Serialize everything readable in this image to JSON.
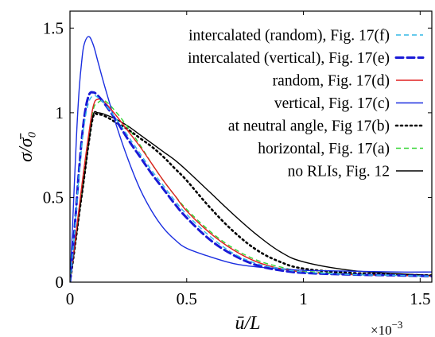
{
  "chart_data": {
    "type": "line",
    "xlabel": "ū/L",
    "ylabel": "σ/σ̄₀",
    "x_multiplier": "×10",
    "x_multiplier_exp": "−3",
    "xlim": [
      0,
      1.55
    ],
    "ylim": [
      0,
      1.6
    ],
    "x_ticks": [
      {
        "value": 0,
        "label": "0"
      },
      {
        "value": 0.5,
        "label": "0.5"
      },
      {
        "value": 1,
        "label": "1"
      },
      {
        "value": 1.5,
        "label": "1.5"
      }
    ],
    "y_ticks": [
      {
        "value": 0,
        "label": "0"
      },
      {
        "value": 0.5,
        "label": "0.5"
      },
      {
        "value": 1,
        "label": "1"
      },
      {
        "value": 1.5,
        "label": "1.5"
      }
    ],
    "legend_position": "top-right",
    "series": [
      {
        "name": "intercalated (random), Fig. 17(f)",
        "color": "#33b8e6",
        "dash": "6,4",
        "width": 1.4,
        "x": [
          0,
          0.02,
          0.04,
          0.06,
          0.08,
          0.1,
          0.12,
          0.15,
          0.2,
          0.25,
          0.3,
          0.35,
          0.4,
          0.45,
          0.5,
          0.6,
          0.7,
          0.8,
          0.9,
          1.0,
          1.2,
          1.4,
          1.55
        ],
        "y": [
          0,
          0.3,
          0.65,
          0.92,
          1.06,
          1.1,
          1.09,
          1.05,
          0.96,
          0.86,
          0.76,
          0.66,
          0.57,
          0.48,
          0.4,
          0.27,
          0.17,
          0.11,
          0.08,
          0.06,
          0.045,
          0.04,
          0.035
        ]
      },
      {
        "name": "intercalated (vertical), Fig. 17(e)",
        "color": "#1a1ad6",
        "dash": "9,5",
        "width": 3,
        "x": [
          0,
          0.02,
          0.04,
          0.06,
          0.08,
          0.1,
          0.12,
          0.15,
          0.2,
          0.25,
          0.3,
          0.35,
          0.4,
          0.45,
          0.5,
          0.6,
          0.7,
          0.8,
          0.9,
          1.0,
          1.2,
          1.4,
          1.55
        ],
        "y": [
          0,
          0.32,
          0.68,
          0.96,
          1.1,
          1.12,
          1.1,
          1.05,
          0.95,
          0.84,
          0.74,
          0.64,
          0.55,
          0.46,
          0.38,
          0.25,
          0.16,
          0.1,
          0.07,
          0.055,
          0.045,
          0.04,
          0.035
        ]
      },
      {
        "name": "random, Fig. 17(d)",
        "color": "#e02020",
        "dash": "",
        "width": 1.4,
        "x": [
          0,
          0.02,
          0.04,
          0.06,
          0.08,
          0.1,
          0.12,
          0.15,
          0.2,
          0.25,
          0.3,
          0.35,
          0.4,
          0.45,
          0.5,
          0.6,
          0.7,
          0.8,
          0.9,
          1.0,
          1.2,
          1.4,
          1.55
        ],
        "y": [
          0,
          0.22,
          0.45,
          0.67,
          0.87,
          1.04,
          1.08,
          1.06,
          0.98,
          0.89,
          0.8,
          0.7,
          0.6,
          0.51,
          0.42,
          0.29,
          0.19,
          0.12,
          0.08,
          0.06,
          0.045,
          0.04,
          0.035
        ]
      },
      {
        "name": "vertical, Fig. 17(c)",
        "color": "#1a2ee0",
        "dash": "",
        "width": 1.4,
        "x": [
          0,
          0.01,
          0.02,
          0.03,
          0.04,
          0.05,
          0.06,
          0.08,
          0.1,
          0.12,
          0.15,
          0.2,
          0.25,
          0.3,
          0.35,
          0.4,
          0.45,
          0.5,
          0.6,
          0.7,
          0.8,
          0.9,
          1.0,
          1.2,
          1.4,
          1.55
        ],
        "y": [
          0,
          0.3,
          0.62,
          0.92,
          1.15,
          1.3,
          1.4,
          1.45,
          1.4,
          1.3,
          1.15,
          0.92,
          0.72,
          0.55,
          0.42,
          0.32,
          0.25,
          0.2,
          0.15,
          0.11,
          0.09,
          0.08,
          0.07,
          0.065,
          0.06,
          0.06
        ]
      },
      {
        "name": "at neutral angle, Fig 17(b)",
        "color": "#000000",
        "dash": "2,4",
        "width": 2.6,
        "x": [
          0,
          0.02,
          0.04,
          0.06,
          0.08,
          0.1,
          0.12,
          0.15,
          0.2,
          0.25,
          0.3,
          0.35,
          0.4,
          0.45,
          0.5,
          0.6,
          0.7,
          0.8,
          0.9,
          1.0,
          1.2,
          1.4,
          1.55
        ],
        "y": [
          0,
          0.2,
          0.41,
          0.61,
          0.82,
          0.98,
          0.99,
          0.98,
          0.94,
          0.9,
          0.85,
          0.8,
          0.74,
          0.67,
          0.6,
          0.44,
          0.3,
          0.19,
          0.12,
          0.08,
          0.055,
          0.045,
          0.04
        ]
      },
      {
        "name": "horizontal, Fig. 17(a)",
        "color": "#33d633",
        "dash": "6,4",
        "width": 1.4,
        "x": [
          0,
          0.02,
          0.04,
          0.06,
          0.08,
          0.1,
          0.12,
          0.15,
          0.2,
          0.25,
          0.3,
          0.35,
          0.4,
          0.45,
          0.5,
          0.6,
          0.7,
          0.8,
          0.9,
          1.0,
          1.2,
          1.4,
          1.55
        ],
        "y": [
          0,
          0.21,
          0.43,
          0.64,
          0.85,
          1.02,
          1.06,
          1.07,
          1.0,
          0.91,
          0.81,
          0.7,
          0.6,
          0.51,
          0.43,
          0.3,
          0.2,
          0.13,
          0.09,
          0.065,
          0.05,
          0.04,
          0.035
        ]
      },
      {
        "name": "no RLIs, Fig. 12",
        "color": "#000000",
        "dash": "",
        "width": 1.4,
        "x": [
          0,
          0.02,
          0.04,
          0.06,
          0.08,
          0.1,
          0.12,
          0.15,
          0.2,
          0.25,
          0.3,
          0.35,
          0.4,
          0.45,
          0.5,
          0.6,
          0.7,
          0.8,
          0.9,
          1.0,
          1.2,
          1.4,
          1.55
        ],
        "y": [
          0,
          0.2,
          0.41,
          0.61,
          0.82,
          0.99,
          1.0,
          0.99,
          0.96,
          0.92,
          0.87,
          0.82,
          0.77,
          0.72,
          0.66,
          0.53,
          0.4,
          0.28,
          0.18,
          0.12,
          0.07,
          0.05,
          0.04
        ]
      }
    ]
  }
}
